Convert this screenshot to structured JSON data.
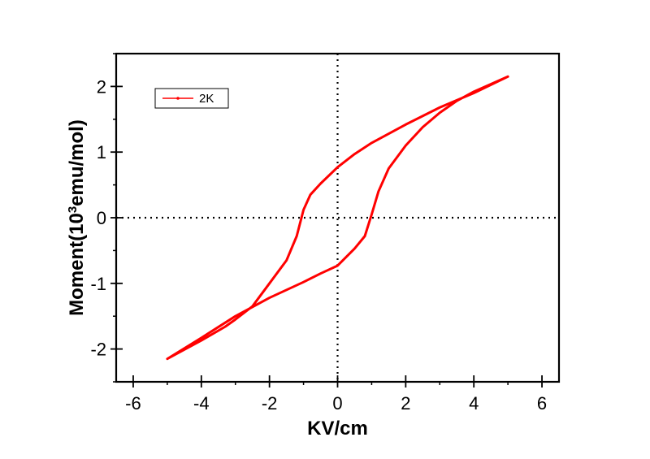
{
  "chart_data": {
    "type": "line",
    "xlabel": "KV/cm",
    "ylabel_parts": {
      "prefix": "Moment(10",
      "superscript": "3",
      "suffix": "emu/mol)"
    },
    "xlim": [
      -6.5,
      6.5
    ],
    "ylim": [
      -2.5,
      2.5
    ],
    "x_ticks": [
      -6,
      -4,
      -2,
      0,
      2,
      4,
      6
    ],
    "y_ticks": [
      -2,
      -1,
      0,
      1,
      2
    ],
    "x_tick_labels": [
      "-6",
      "-4",
      "-2",
      "0",
      "2",
      "4",
      "6"
    ],
    "y_tick_labels": [
      "-2",
      "-1",
      "0",
      "1",
      "2"
    ],
    "grid": false,
    "zero_lines": "dotted",
    "legend_position": "top-left",
    "series": [
      {
        "name": "2K",
        "color": "#ff0000",
        "x": [
          5.0,
          4.0,
          3.0,
          2.0,
          1.0,
          0.5,
          0.0,
          -0.5,
          -0.8,
          -1.0,
          -1.2,
          -1.5,
          -2.0,
          -2.5,
          -3.0,
          -3.3,
          -4.0,
          -5.0,
          -4.0,
          -3.0,
          -2.0,
          -1.0,
          -0.5,
          0.0,
          0.5,
          0.8,
          1.0,
          1.2,
          1.5,
          2.0,
          2.5,
          3.0,
          3.5,
          4.0,
          5.0
        ],
        "y": [
          2.15,
          1.9,
          1.68,
          1.42,
          1.14,
          0.97,
          0.77,
          0.52,
          0.35,
          0.12,
          -0.28,
          -0.65,
          -1.0,
          -1.35,
          -1.55,
          -1.66,
          -1.87,
          -2.15,
          -1.83,
          -1.5,
          -1.22,
          -0.98,
          -0.85,
          -0.73,
          -0.47,
          -0.28,
          0.05,
          0.4,
          0.75,
          1.1,
          1.38,
          1.6,
          1.78,
          1.92,
          2.15
        ]
      }
    ]
  }
}
